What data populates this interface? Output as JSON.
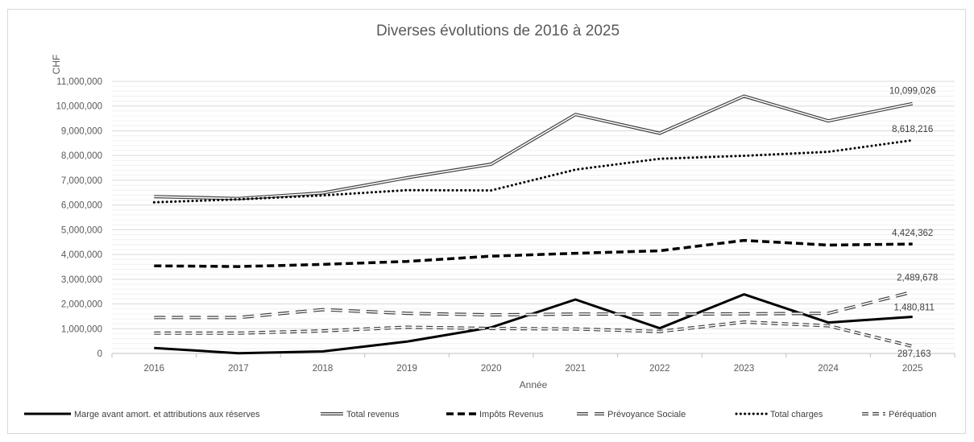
{
  "chart_data": {
    "type": "line",
    "title": "Diverses évolutions de 2016 à 2025",
    "xlabel": "Année",
    "ylabel": "CHF",
    "ylim": [
      0,
      11000000
    ],
    "y_ticks": [
      "0",
      "1,000,000",
      "2,000,000",
      "3,000,000",
      "4,000,000",
      "5,000,000",
      "6,000,000",
      "7,000,000",
      "8,000,000",
      "9,000,000",
      "10,000,000",
      "11,000,000"
    ],
    "categories": [
      "2016",
      "2017",
      "2018",
      "2019",
      "2020",
      "2021",
      "2022",
      "2023",
      "2024",
      "2025"
    ],
    "grid": true,
    "legend_position": "bottom",
    "series": [
      {
        "name": "Marge avant amort. et attributions aux réserves",
        "style": "solid-thick",
        "color": "#000000",
        "values": [
          220000,
          10000,
          80000,
          480000,
          1050000,
          2180000,
          1020000,
          2390000,
          1250000,
          1480811
        ],
        "end_label": "1,480,811"
      },
      {
        "name": "Total revenus",
        "style": "double",
        "color": "#404040",
        "values": [
          6340000,
          6260000,
          6490000,
          7100000,
          7650000,
          9660000,
          8900000,
          10400000,
          9400000,
          10099026
        ],
        "end_label": "10,099,026"
      },
      {
        "name": "Impôts Revenus",
        "style": "dashed-thick",
        "color": "#000000",
        "values": [
          3540000,
          3510000,
          3600000,
          3720000,
          3930000,
          4050000,
          4150000,
          4570000,
          4380000,
          4424362
        ],
        "end_label": "4,424,362"
      },
      {
        "name": "Prévoyance Sociale",
        "style": "double-dashed",
        "color": "#404040",
        "values": [
          1450000,
          1450000,
          1770000,
          1620000,
          1560000,
          1590000,
          1590000,
          1600000,
          1620000,
          2489678
        ],
        "end_label": "2,489,678"
      },
      {
        "name": "Total charges",
        "style": "dotted",
        "color": "#000000",
        "values": [
          6110000,
          6230000,
          6390000,
          6600000,
          6590000,
          7430000,
          7870000,
          7990000,
          8150000,
          8618216
        ],
        "end_label": "8,618,216"
      },
      {
        "name": "Péréquation",
        "style": "double-dashed-short",
        "color": "#404040",
        "values": [
          820000,
          820000,
          910000,
          1060000,
          1010000,
          990000,
          890000,
          1270000,
          1120000,
          287163
        ],
        "end_label": "287,163"
      }
    ]
  }
}
